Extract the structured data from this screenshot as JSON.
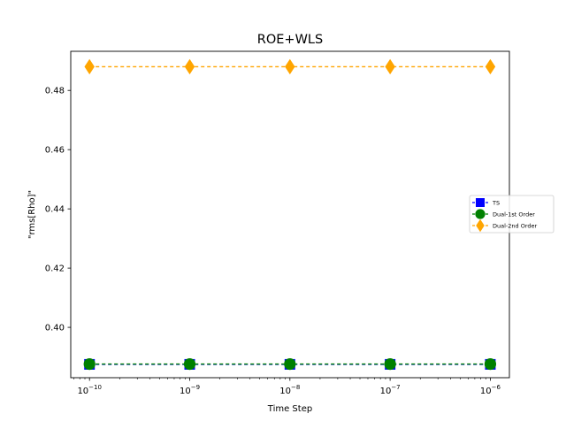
{
  "chart_data": {
    "type": "line",
    "title": "ROE+WLS",
    "xlabel": "Time Step",
    "ylabel": "\"rms[Rho]\"",
    "xscale": "log",
    "x": [
      1e-10,
      1e-09,
      1e-08,
      1e-07,
      1e-06
    ],
    "x_tick_labels": [
      {
        "base": "10",
        "exp": "−10"
      },
      {
        "base": "10",
        "exp": "−9"
      },
      {
        "base": "10",
        "exp": "−8"
      },
      {
        "base": "10",
        "exp": "−7"
      },
      {
        "base": "10",
        "exp": "−6"
      }
    ],
    "y_ticks": [
      0.4,
      0.42,
      0.44,
      0.46,
      0.48
    ],
    "y_tick_labels": [
      "0.40",
      "0.42",
      "0.44",
      "0.46",
      "0.48"
    ],
    "xlim": [
      6.5e-11,
      1.55e-06
    ],
    "ylim": [
      0.383,
      0.4932
    ],
    "grid": false,
    "legend_position": "center-right",
    "series": [
      {
        "name": "TS",
        "marker": "square",
        "color": "#0000ff",
        "values": [
          0.3875,
          0.3875,
          0.3875,
          0.3875,
          0.3875
        ]
      },
      {
        "name": "Dual-1st Order",
        "marker": "circle",
        "color": "#008000",
        "values": [
          0.3876,
          0.3876,
          0.3876,
          0.3876,
          0.3876
        ]
      },
      {
        "name": "Dual-2nd Order",
        "marker": "diamond",
        "color": "#ffa500",
        "values": [
          0.488,
          0.488,
          0.488,
          0.488,
          0.488
        ]
      }
    ]
  }
}
